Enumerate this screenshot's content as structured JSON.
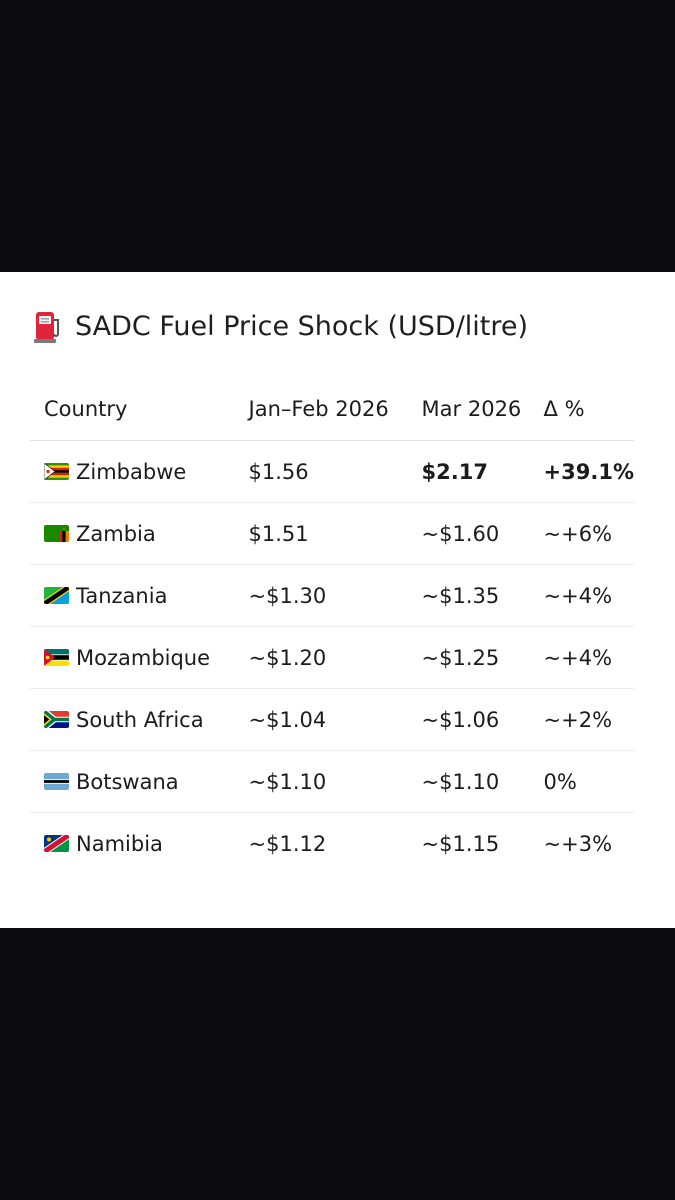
{
  "header": {
    "icon": "fuel-pump-icon",
    "title": "SADC Fuel Price Shock (USD/litre)"
  },
  "table": {
    "columns": [
      "Country",
      "Jan–Feb 2026",
      "Mar 2026",
      "Δ %"
    ],
    "rows": [
      {
        "flag": "zimbabwe-flag-icon",
        "country": "Zimbabwe",
        "jan_feb": "$1.56",
        "mar": "$2.17",
        "change": "+39.1%",
        "highlight": true
      },
      {
        "flag": "zambia-flag-icon",
        "country": "Zambia",
        "jan_feb": "$1.51",
        "mar": "~$1.60",
        "change": "~+6%"
      },
      {
        "flag": "tanzania-flag-icon",
        "country": "Tanzania",
        "jan_feb": "~$1.30",
        "mar": "~$1.35",
        "change": "~+4%"
      },
      {
        "flag": "mozambique-flag-icon",
        "country": "Mozambique",
        "jan_feb": "~$1.20",
        "mar": "~$1.25",
        "change": "~+4%"
      },
      {
        "flag": "south-africa-flag-icon",
        "country": "South Africa",
        "jan_feb": "~$1.04",
        "mar": "~$1.06",
        "change": "~+2%"
      },
      {
        "flag": "botswana-flag-icon",
        "country": "Botswana",
        "jan_feb": "~$1.10",
        "mar": "~$1.10",
        "change": "0%"
      },
      {
        "flag": "namibia-flag-icon",
        "country": "Namibia",
        "jan_feb": "~$1.12",
        "mar": "~$1.15",
        "change": "~+3%"
      }
    ]
  },
  "colors": {
    "page_background": "#0b0a0c",
    "card_background": "#ffffff",
    "pump_red": "#e0243a"
  }
}
